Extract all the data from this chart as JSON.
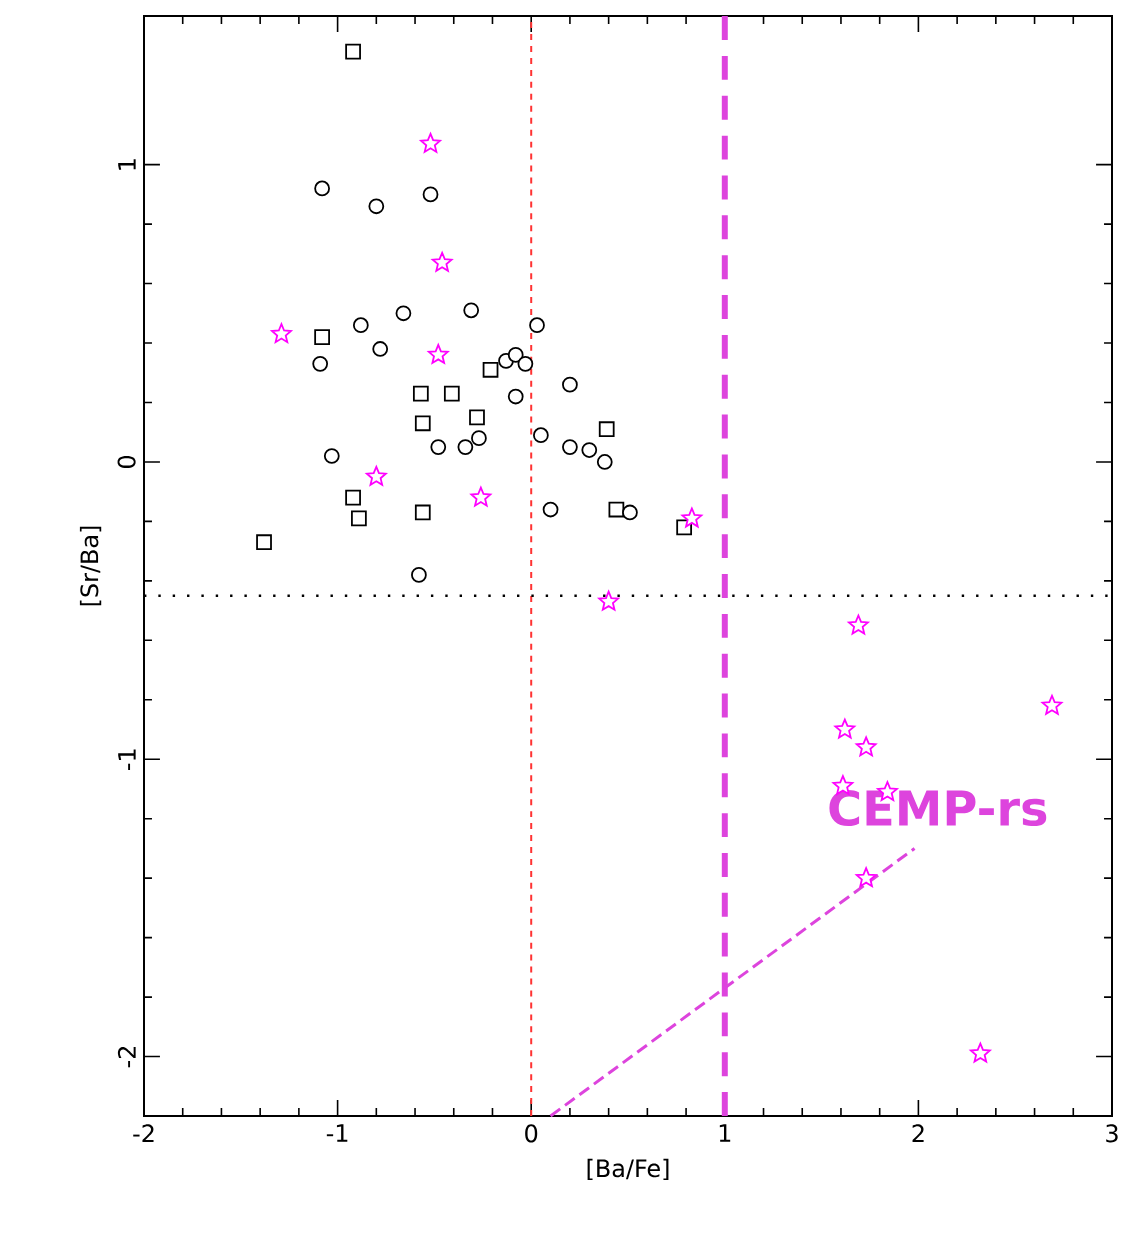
{
  "chart_data": {
    "type": "scatter",
    "xlabel": "[Ba/Fe]",
    "ylabel": "[Sr/Ba]",
    "xlim": [
      -2,
      3
    ],
    "ylim": [
      -2.2,
      1.5
    ],
    "xticks": [
      -2,
      -1,
      0,
      1,
      2,
      3
    ],
    "yticks": [
      -2,
      -1,
      0,
      1
    ],
    "series": [
      {
        "color": "#000000",
        "marker": "square",
        "x": [
          -0.92,
          -1.08,
          -0.57,
          -0.41,
          -0.21,
          -0.56,
          -0.28,
          0.39,
          -0.92,
          -0.89,
          -0.56,
          -1.38,
          0.44,
          0.79
        ],
        "values": [
          1.38,
          0.42,
          0.23,
          0.23,
          0.31,
          0.13,
          0.15,
          0.11,
          -0.12,
          -0.19,
          -0.17,
          -0.27,
          -0.16,
          -0.22
        ]
      },
      {
        "color": "#000000",
        "marker": "circle",
        "x": [
          -1.08,
          -0.8,
          -0.52,
          -0.66,
          -0.31,
          -0.88,
          -0.78,
          -1.09,
          -0.13,
          -0.08,
          -0.03,
          0.2,
          -1.03,
          -0.48,
          -0.34,
          -0.27,
          0.38,
          0.1,
          -0.58
        ],
        "values": [
          0.92,
          0.86,
          0.9,
          0.5,
          0.51,
          0.46,
          0.38,
          0.33,
          0.34,
          0.36,
          0.33,
          0.26,
          0.02,
          0.05,
          0.05,
          0.08,
          0.0,
          -0.16,
          -0.38
        ]
      },
      {
        "color": "#000000",
        "marker": "circle",
        "x": [
          0.03,
          -0.08,
          0.05,
          0.2,
          0.3,
          0.51
        ],
        "values": [
          0.46,
          0.22,
          0.09,
          0.05,
          0.04,
          -0.17
        ]
      },
      {
        "color": "#ff00ff",
        "marker": "star",
        "x": [
          -0.52,
          -0.46,
          -1.29,
          -0.48,
          -0.8,
          -0.26,
          0.83,
          0.4,
          1.69,
          2.69,
          1.62,
          1.73,
          1.61,
          1.84,
          1.73,
          2.32
        ],
        "values": [
          1.07,
          0.67,
          0.43,
          0.36,
          -0.05,
          -0.12,
          -0.19,
          -0.47,
          -0.55,
          -0.82,
          -0.9,
          -0.96,
          -1.09,
          -1.11,
          -1.4,
          -1.99
        ]
      },
      {
        "type": "line",
        "color": "#dd44dd",
        "marker": "none",
        "line_style": "dashed",
        "x": [
          0.1,
          1.98
        ],
        "values": [
          -2.2,
          -1.3
        ]
      }
    ],
    "ref_lines": [
      {
        "axis": "x",
        "value": 0,
        "color": "#ff3333",
        "line_style": "dashed"
      },
      {
        "axis": "x",
        "value": 1,
        "color": "#dd44dd",
        "line_style": "dashed"
      },
      {
        "axis": "y",
        "value": -0.45,
        "color": "#000000",
        "line_style": "dotted"
      }
    ],
    "annotations": [
      "CEMP-rs"
    ]
  }
}
